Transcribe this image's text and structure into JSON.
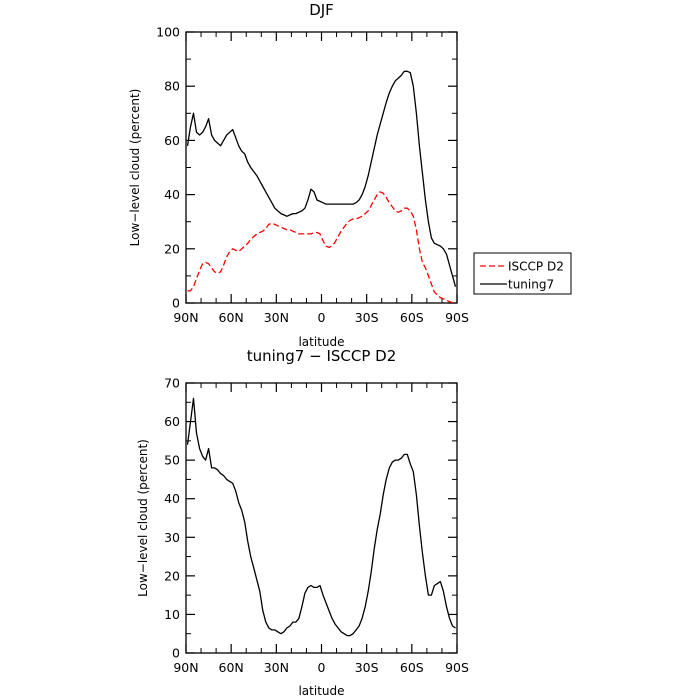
{
  "chart_data": [
    {
      "type": "line",
      "title": "DJF",
      "xlabel": "latitude",
      "ylabel": "Low−level cloud (percent)",
      "x_tick_labels": [
        "90N",
        "60N",
        "30N",
        "0",
        "30S",
        "60S",
        "90S"
      ],
      "x_tick_values": [
        -90,
        -60,
        -30,
        0,
        30,
        60,
        90
      ],
      "xlim": [
        -90,
        90
      ],
      "ylim": [
        0,
        100
      ],
      "y_ticks": [
        0,
        20,
        40,
        60,
        80,
        100
      ],
      "grid": false,
      "legend_position": "right",
      "series": [
        {
          "name": "ISCCP D2",
          "color": "#ff0000",
          "style": "dashed",
          "x": [
            -89,
            -87,
            -85,
            -83,
            -81,
            -79,
            -77,
            -75,
            -73,
            -71,
            -69,
            -67,
            -65,
            -63,
            -61,
            -59,
            -57,
            -55,
            -53,
            -51,
            -49,
            -47,
            -45,
            -43,
            -41,
            -39,
            -37,
            -35,
            -33,
            -31,
            -29,
            -27,
            -25,
            -23,
            -21,
            -19,
            -17,
            -15,
            -13,
            -11,
            -9,
            -7,
            -5,
            -3,
            -1,
            1,
            3,
            5,
            7,
            9,
            11,
            13,
            15,
            17,
            19,
            21,
            23,
            25,
            27,
            29,
            31,
            33,
            35,
            37,
            39,
            41,
            43,
            45,
            47,
            49,
            51,
            53,
            55,
            57,
            59,
            61,
            63,
            65,
            67,
            69,
            71,
            73,
            75,
            77,
            79,
            81,
            83,
            85,
            87,
            89
          ],
          "values": [
            4.5,
            4.5,
            6,
            9,
            12,
            14.5,
            15,
            14.5,
            13,
            11.5,
            11,
            11.5,
            14,
            17,
            19,
            20,
            19.5,
            19,
            20,
            21,
            22,
            23.5,
            24.5,
            25.5,
            26,
            26.5,
            27.5,
            29,
            29.5,
            29,
            28.5,
            28,
            27.5,
            27,
            27,
            26.5,
            26,
            25.5,
            25.5,
            25.5,
            25.5,
            25.5,
            26,
            26,
            25.5,
            23,
            21,
            20.5,
            21,
            22.5,
            24.5,
            26.5,
            28,
            29.5,
            30.5,
            31,
            31,
            31.5,
            32,
            33,
            34,
            36,
            38,
            40,
            41,
            40.5,
            39,
            37,
            35.5,
            34,
            33.5,
            34,
            35,
            35,
            34,
            32,
            27,
            20,
            15,
            13,
            10,
            7,
            4,
            3,
            2,
            1.5,
            1,
            0.5,
            0.2,
            0.1
          ]
        },
        {
          "name": "tuning7",
          "color": "#000000",
          "style": "solid",
          "x": [
            -89,
            -87,
            -85,
            -83,
            -81,
            -79,
            -77,
            -75,
            -73,
            -71,
            -69,
            -67,
            -65,
            -63,
            -61,
            -59,
            -57,
            -55,
            -53,
            -51,
            -49,
            -47,
            -45,
            -43,
            -41,
            -39,
            -37,
            -35,
            -33,
            -31,
            -29,
            -27,
            -25,
            -23,
            -21,
            -19,
            -17,
            -15,
            -13,
            -11,
            -9,
            -7,
            -5,
            -3,
            -1,
            1,
            3,
            5,
            7,
            9,
            11,
            13,
            15,
            17,
            19,
            21,
            23,
            25,
            27,
            29,
            31,
            33,
            35,
            37,
            39,
            41,
            43,
            45,
            47,
            49,
            51,
            53,
            55,
            57,
            59,
            61,
            63,
            65,
            67,
            69,
            71,
            73,
            75,
            77,
            79,
            81,
            83,
            85,
            87,
            89
          ],
          "values": [
            58,
            65,
            70,
            63,
            62,
            63,
            65,
            68,
            62,
            60,
            59,
            58,
            60,
            62,
            63,
            64,
            61,
            58,
            56,
            55,
            52,
            50,
            48.5,
            47,
            45,
            43,
            41,
            39,
            37,
            35,
            34,
            33,
            32.5,
            32,
            32.5,
            33,
            33,
            33.5,
            34,
            35,
            38,
            42,
            41,
            38,
            37.5,
            37,
            36.5,
            36.5,
            36.5,
            36.5,
            36.5,
            36.5,
            36.5,
            36.5,
            36.5,
            36.5,
            37,
            38,
            40,
            43,
            47,
            52,
            57,
            62,
            66,
            70,
            74,
            77.5,
            80,
            82,
            83,
            84,
            85.5,
            85.5,
            85,
            80,
            70,
            58,
            48,
            38,
            30,
            24,
            22,
            21.5,
            21,
            20,
            18,
            14,
            10,
            6
          ]
        }
      ]
    },
    {
      "type": "line",
      "title": "tuning7 − ISCCP D2",
      "xlabel": "latitude",
      "ylabel": "Low−level cloud (percent)",
      "x_tick_labels": [
        "90N",
        "60N",
        "30N",
        "0",
        "30S",
        "60S",
        "90S"
      ],
      "x_tick_values": [
        -90,
        -60,
        -30,
        0,
        30,
        60,
        90
      ],
      "xlim": [
        -90,
        90
      ],
      "ylim": [
        0,
        70
      ],
      "y_ticks": [
        0,
        10,
        20,
        30,
        40,
        50,
        60,
        70
      ],
      "grid": false,
      "legend_position": "none",
      "series": [
        {
          "color": "#000000",
          "style": "solid",
          "x": [
            -89,
            -87,
            -85,
            -83,
            -81,
            -79,
            -77,
            -75,
            -73,
            -71,
            -69,
            -67,
            -65,
            -63,
            -61,
            -59,
            -57,
            -55,
            -53,
            -51,
            -49,
            -47,
            -45,
            -43,
            -41,
            -39,
            -37,
            -35,
            -33,
            -31,
            -29,
            -27,
            -25,
            -23,
            -21,
            -19,
            -17,
            -15,
            -13,
            -11,
            -9,
            -7,
            -5,
            -3,
            -1,
            1,
            3,
            5,
            7,
            9,
            11,
            13,
            15,
            17,
            19,
            21,
            23,
            25,
            27,
            29,
            31,
            33,
            35,
            37,
            39,
            41,
            43,
            45,
            47,
            49,
            51,
            53,
            55,
            57,
            59,
            61,
            63,
            65,
            67,
            69,
            71,
            73,
            75,
            77,
            79,
            81,
            83,
            85,
            87,
            89
          ],
          "values": [
            54,
            60,
            66,
            57,
            53,
            51,
            50,
            53,
            48,
            48,
            47.5,
            46.5,
            46,
            45,
            44.5,
            44,
            42,
            39,
            37,
            34,
            29,
            25,
            22,
            19,
            16,
            11,
            8,
            6.5,
            6,
            6,
            5.5,
            5,
            5.5,
            6.5,
            7,
            8,
            8,
            9,
            12,
            15.5,
            17,
            17.5,
            17,
            17,
            17.5,
            15,
            13,
            11,
            9,
            7.5,
            6.5,
            5.5,
            5,
            4.5,
            4.5,
            5,
            6,
            7,
            9,
            12,
            16,
            21,
            27,
            32,
            36,
            41,
            45,
            48,
            49.5,
            50,
            50,
            50.5,
            51.5,
            51.5,
            49,
            47,
            41,
            33,
            26,
            20,
            15,
            15,
            17.5,
            18,
            18.5,
            16,
            12,
            9,
            7,
            6.5
          ]
        }
      ]
    }
  ]
}
